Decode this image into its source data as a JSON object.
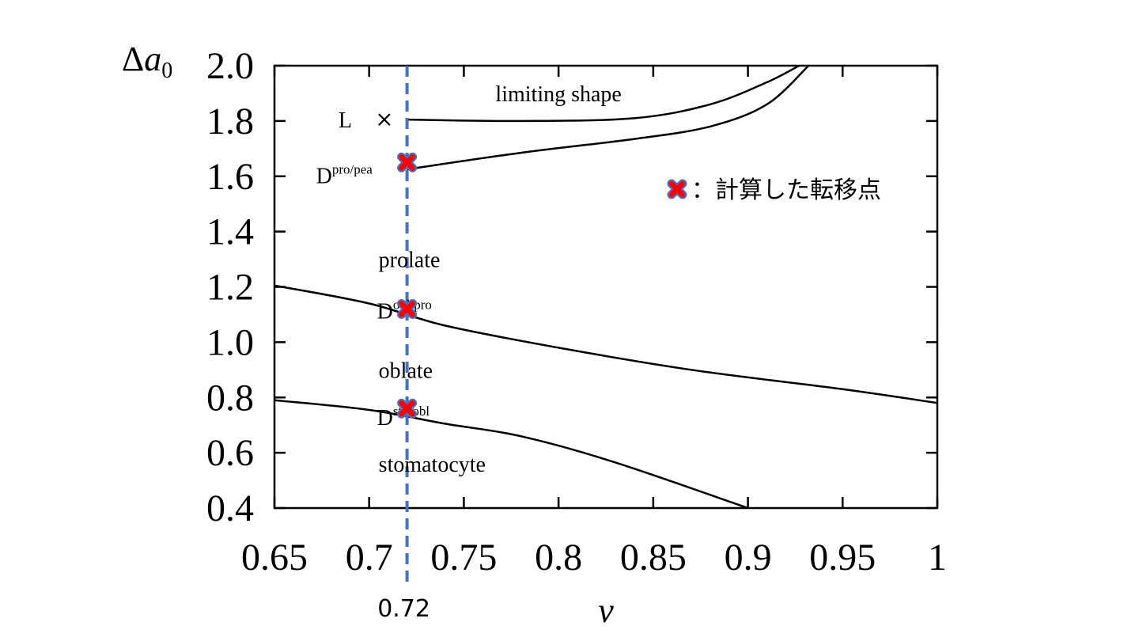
{
  "chart_data": {
    "type": "line",
    "xlabel": "v",
    "ylabel": {
      "base": "Δ",
      "var": "a",
      "sub": "0"
    },
    "xlim": [
      0.65,
      1.0
    ],
    "ylim": [
      0.4,
      2.0
    ],
    "xticks": [
      0.65,
      0.7,
      0.75,
      0.8,
      0.85,
      0.9,
      0.95,
      1.0
    ],
    "xtick_labels": [
      "0.65",
      "0.7",
      "0.75",
      "0.8",
      "0.85",
      "0.9",
      "0.95",
      "1"
    ],
    "yticks": [
      0.4,
      0.6,
      0.8,
      1.0,
      1.2,
      1.4,
      1.6,
      1.8,
      2.0
    ],
    "ytick_labels": [
      "0.4",
      "0.6",
      "0.8",
      "1.0",
      "1.2",
      "1.4",
      "1.6",
      "1.8",
      "2.0"
    ],
    "grid": false,
    "series": [
      {
        "points": [
          [
            0.72,
            1.805
          ],
          [
            0.78,
            1.8
          ],
          [
            0.84,
            1.81
          ],
          [
            0.88,
            1.86
          ],
          [
            0.91,
            1.94
          ],
          [
            0.927,
            2.0
          ]
        ]
      },
      {
        "points": [
          [
            0.72,
            1.625
          ],
          [
            0.78,
            1.685
          ],
          [
            0.84,
            1.735
          ],
          [
            0.88,
            1.78
          ],
          [
            0.91,
            1.86
          ],
          [
            0.932,
            2.0
          ]
        ]
      },
      {
        "points": [
          [
            0.65,
            1.205
          ],
          [
            0.7,
            1.14
          ],
          [
            0.74,
            1.06
          ],
          [
            0.8,
            0.98
          ],
          [
            0.87,
            0.9
          ],
          [
            0.95,
            0.83
          ],
          [
            1.0,
            0.78
          ]
        ]
      },
      {
        "points": [
          [
            0.65,
            0.79
          ],
          [
            0.7,
            0.755
          ],
          [
            0.74,
            0.705
          ],
          [
            0.78,
            0.66
          ],
          [
            0.83,
            0.565
          ],
          [
            0.9,
            0.4
          ]
        ]
      }
    ],
    "reference_line": {
      "x": 0.72,
      "label": "0.72",
      "color": "#4472c4"
    },
    "markers": [
      {
        "x": 0.72,
        "y": 1.65,
        "label": "D",
        "sup": "pro/pea"
      },
      {
        "x": 0.72,
        "y": 1.12,
        "label": "D",
        "sup": "obl/pro"
      },
      {
        "x": 0.72,
        "y": 0.76,
        "label": "D",
        "sup": "sto/obl"
      }
    ],
    "limit_point": {
      "x": 0.708,
      "y": 1.805,
      "label": "L"
    },
    "regions": [
      {
        "label": "limiting shape",
        "x": 0.8,
        "y": 1.9
      },
      {
        "label": "prolate",
        "x": 0.705,
        "y": 1.3
      },
      {
        "label": "oblate",
        "x": 0.705,
        "y": 0.9
      },
      {
        "label": "stomatocyte",
        "x": 0.705,
        "y": 0.56
      }
    ],
    "legend": {
      "text": "：計算した転移点",
      "position": "upper-right"
    },
    "colors": {
      "marker_fill": "#ff0000",
      "marker_edge": "#4472c4",
      "line": "#000000"
    }
  }
}
